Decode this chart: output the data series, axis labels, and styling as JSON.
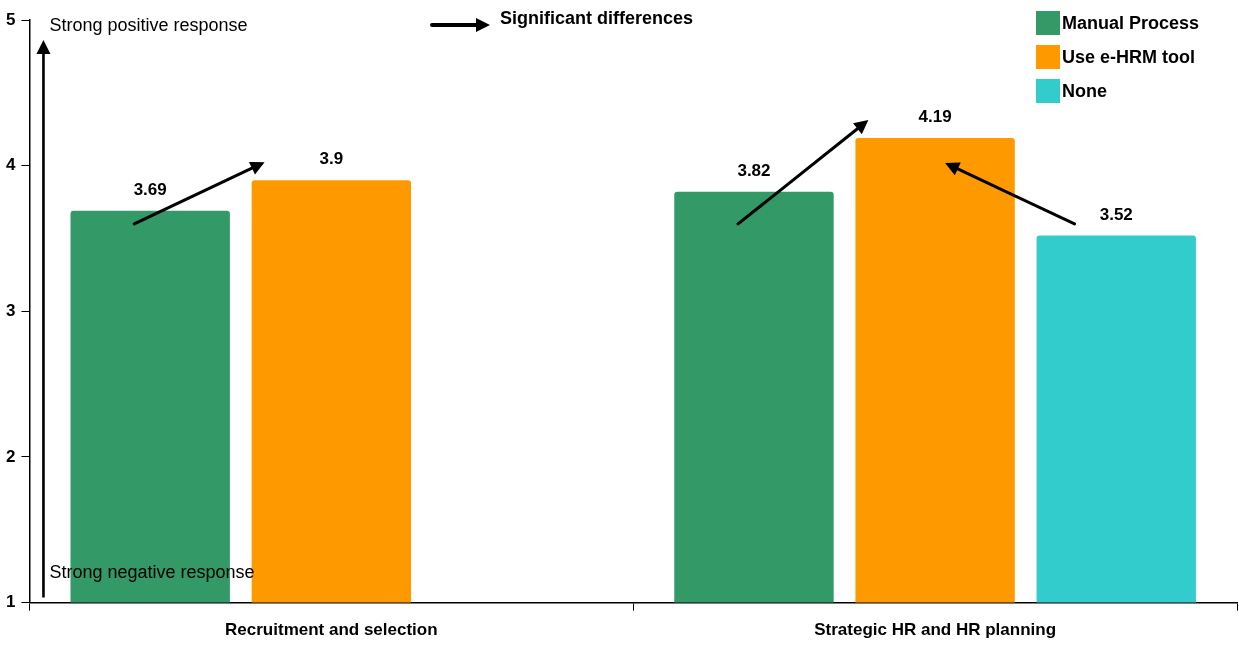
{
  "chart_data": {
    "type": "bar",
    "categories": [
      "Recruitment and selection",
      "Strategic HR and HR planning"
    ],
    "series": [
      {
        "name": "Manual Process",
        "color": "#339966",
        "values": [
          3.69,
          3.82
        ]
      },
      {
        "name": "Use e-HRM tool",
        "color": "#ff9900",
        "values": [
          3.9,
          4.19
        ]
      },
      {
        "name": "None",
        "color": "#33cccc",
        "values": [
          null,
          3.52
        ]
      }
    ],
    "ylim": [
      1,
      5
    ],
    "yticks": [
      1,
      2,
      3,
      4,
      5
    ],
    "grid": false,
    "legend": "top right",
    "data_labels": true,
    "annotations": [
      "Strong positive response",
      "Strong negative response",
      "Significant differences"
    ]
  }
}
